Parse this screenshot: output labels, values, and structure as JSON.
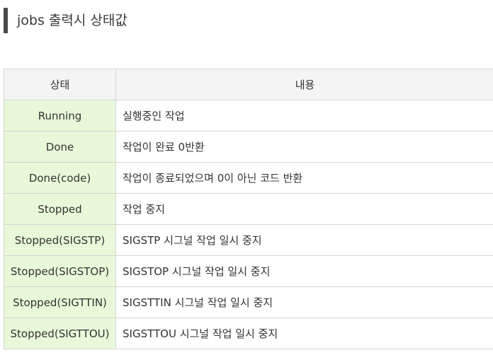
{
  "heading": "jobs 출력시 상태값",
  "table": {
    "headers": [
      "상태",
      "내용"
    ],
    "rows": [
      {
        "state": "Running",
        "desc": "실행중인 작업"
      },
      {
        "state": "Done",
        "desc": "작업이 완료 0반환"
      },
      {
        "state": "Done(code)",
        "desc": "작업이 종료되었으며 0이 아닌 코드 반환"
      },
      {
        "state": "Stopped",
        "desc": "작업 중지"
      },
      {
        "state": "Stopped(SIGSTP)",
        "desc": "SIGSTP 시그널 작업 일시 중지"
      },
      {
        "state": "Stopped(SIGSTOP)",
        "desc": "SIGSTOP 시그널 작업 일시 중지"
      },
      {
        "state": "Stopped(SIGTTIN)",
        "desc": "SIGSTTIN 시그널 작업 일시 중지"
      },
      {
        "state": "Stopped(SIGTTOU)",
        "desc": "SIGSTTOU 시그널 작업 일시 중지"
      }
    ]
  }
}
